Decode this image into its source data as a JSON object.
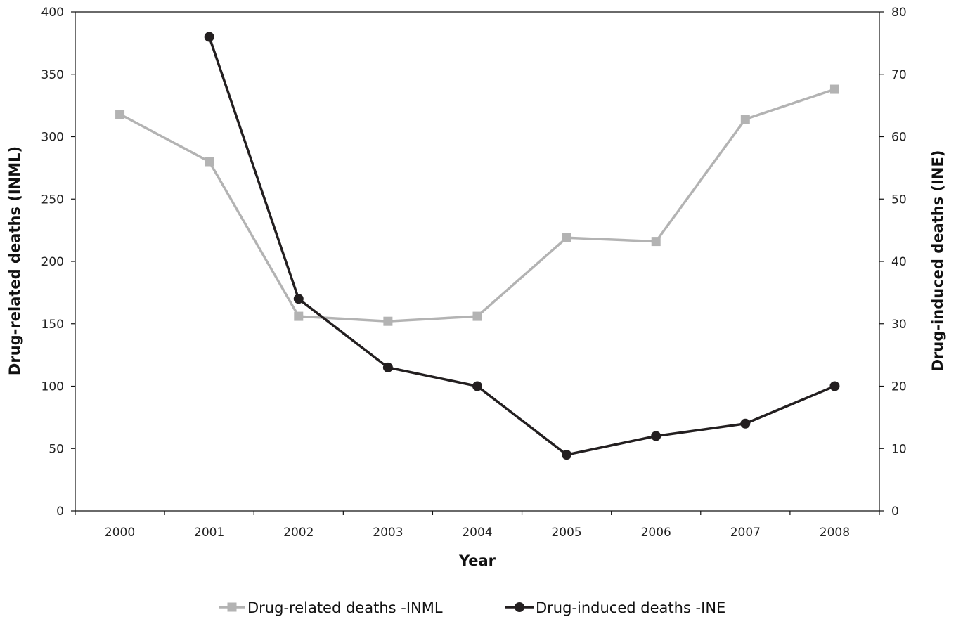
{
  "chart_data": {
    "type": "line",
    "title": "",
    "xlabel": "Year",
    "ylabel_left": "Drug-related deaths (INML)",
    "ylabel_right": "Drug-induced  deaths (INE)",
    "categories": [
      "2000",
      "2001",
      "2002",
      "2003",
      "2004",
      "2005",
      "2006",
      "2007",
      "2008"
    ],
    "ylim_left": [
      0,
      400
    ],
    "ylim_right": [
      0,
      80
    ],
    "yticks_left": [
      "0",
      "50",
      "100",
      "150",
      "200",
      "250",
      "300",
      "350",
      "400"
    ],
    "yticks_right": [
      "0",
      "10",
      "20",
      "30",
      "40",
      "50",
      "60",
      "70",
      "80"
    ],
    "grid": false,
    "legend_position": "bottom",
    "series": [
      {
        "name": "Drug-related deaths -INML",
        "axis": "left",
        "marker": "square",
        "color": "#b3b3b3",
        "values": [
          318,
          280,
          156,
          152,
          156,
          219,
          216,
          314,
          338
        ]
      },
      {
        "name": "Drug-induced deaths -INE",
        "axis": "right",
        "marker": "circle",
        "color": "#231f20",
        "values": [
          null,
          76,
          34,
          23,
          20,
          9,
          12,
          14,
          20
        ]
      }
    ]
  }
}
